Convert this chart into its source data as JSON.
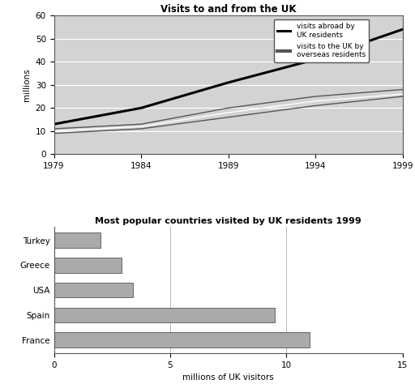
{
  "line_title": "Visits to and from the UK",
  "line_years": [
    1979,
    1984,
    1989,
    1994,
    1999
  ],
  "visits_abroad": [
    13,
    20,
    31,
    41,
    54
  ],
  "visits_to_uk_upper": [
    11,
    13,
    20,
    25,
    28
  ],
  "visits_to_uk_mid": [
    10,
    12,
    18,
    23,
    26
  ],
  "visits_to_uk_lower": [
    9,
    11,
    16,
    21,
    25
  ],
  "line_ylabel": "millions",
  "line_ylim": [
    0,
    60
  ],
  "line_yticks": [
    0,
    10,
    20,
    30,
    40,
    50,
    60
  ],
  "line_xlim": [
    1979,
    1999
  ],
  "line_xticks": [
    1979,
    1984,
    1989,
    1994,
    1999
  ],
  "legend_abroad": "visits abroad by\nUK residents",
  "legend_to_uk": "visits to the UK by\noverseas residents",
  "bar_title": "Most popular countries visited by UK residents 1999",
  "bar_countries": [
    "Turkey",
    "Greece",
    "USA",
    "Spain",
    "France"
  ],
  "bar_values": [
    2.0,
    2.9,
    3.4,
    9.5,
    11.0
  ],
  "bar_color": "#aaaaaa",
  "bar_xlabel": "millions of UK visitors",
  "bar_xlim": [
    0,
    15
  ],
  "bar_xticks": [
    0,
    5,
    10,
    15
  ],
  "bg_color": "#d3d3d3",
  "line_color_abroad": "#000000",
  "line_color_to_uk": "#555555",
  "fig_bg": "#ffffff"
}
